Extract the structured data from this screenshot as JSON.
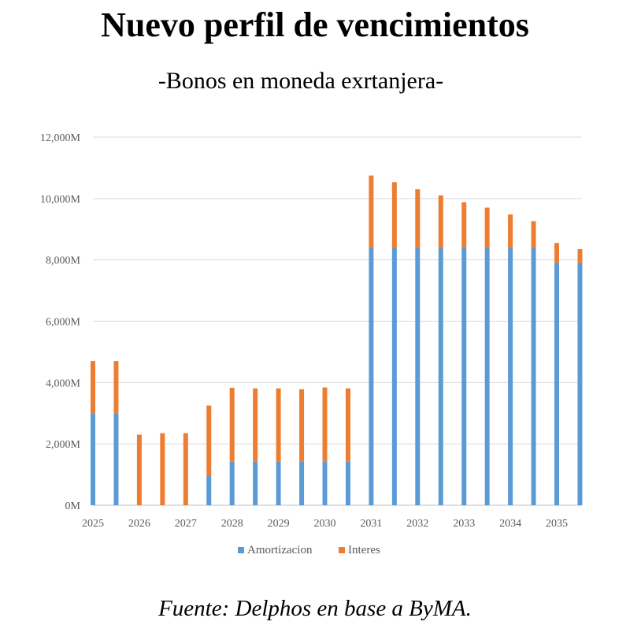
{
  "title": "Nuevo perfil de vencimientos",
  "subtitle": "-Bonos en moneda exrtanjera-",
  "source": "Fuente: Delphos en base a ByMA.",
  "chart_data": {
    "type": "bar",
    "stacked": true,
    "title": "Nuevo perfil de vencimientos",
    "subtitle": "-Bonos en moneda exrtanjera-",
    "xlabel": "",
    "ylabel": "",
    "ylim": [
      0,
      12000
    ],
    "y_ticks": [
      0,
      2000,
      4000,
      6000,
      8000,
      10000,
      12000
    ],
    "y_tick_labels": [
      "0M",
      "2,000M",
      "4,000M",
      "6,000M",
      "8,000M",
      "10,000M",
      "12,000M"
    ],
    "x_tick_labels": [
      "2025",
      "2026",
      "2027",
      "2028",
      "2029",
      "2030",
      "2031",
      "2032",
      "2033",
      "2034",
      "2035"
    ],
    "categories": [
      "2025-01",
      "2025-07",
      "2026-01",
      "2026-07",
      "2027-01",
      "2027-07",
      "2028-01",
      "2028-07",
      "2029-01",
      "2029-07",
      "2030-01",
      "2030-07",
      "2031-01",
      "2031-07",
      "2032-01",
      "2032-07",
      "2033-01",
      "2033-07",
      "2034-01",
      "2034-07",
      "2035-01",
      "2035-07"
    ],
    "grid": true,
    "legend_position": "bottom",
    "series": [
      {
        "name": "Amortizacion",
        "color": "#5B9BD5",
        "values": [
          3000,
          3000,
          0,
          0,
          0,
          950,
          1420,
          1420,
          1420,
          1420,
          1420,
          1420,
          8380,
          8380,
          8380,
          8380,
          8380,
          8380,
          8380,
          8380,
          7900,
          7900
        ]
      },
      {
        "name": "Interes",
        "color": "#ED7D31",
        "values": [
          1700,
          1700,
          2300,
          2350,
          2350,
          2300,
          2410,
          2390,
          2390,
          2360,
          2420,
          2390,
          2370,
          2150,
          1920,
          1720,
          1500,
          1320,
          1100,
          880,
          650,
          450
        ]
      }
    ]
  }
}
